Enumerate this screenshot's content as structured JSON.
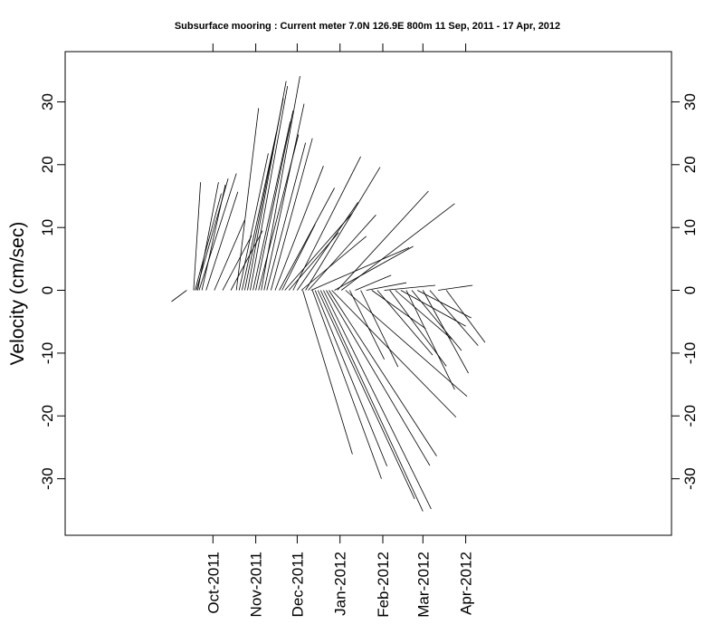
{
  "chart_data": {
    "type": "stick-plot",
    "title": "Subsurface mooring : Current meter  7.0N 126.9E   800m  11 Sep, 2011 - 17 Apr, 2012",
    "xlabel": "",
    "ylabel": "Velocity (cm/sec)",
    "ylim": [
      -39,
      38
    ],
    "yticks": [
      -30,
      -20,
      -10,
      0,
      10,
      20,
      30
    ],
    "ytick_labels": [
      "-30",
      "-20",
      "-10",
      "0",
      "10",
      "20",
      "30"
    ],
    "xlim": [
      "2011-06-16",
      "2012-08-28"
    ],
    "xticks": [
      "2011-10-01",
      "2011-11-01",
      "2011-12-01",
      "2012-01-01",
      "2012-02-01",
      "2012-03-01",
      "2012-04-01"
    ],
    "xtick_labels": [
      "Oct-2011",
      "Nov-2011",
      "Dec-2011",
      "Jan-2012",
      "Feb-2012",
      "Mar-2012",
      "Apr-2012"
    ],
    "grid": false,
    "sticks": [
      {
        "date": "2011-09-12",
        "tip": [
          "2011-09-01",
          -1.8
        ]
      },
      {
        "date": "2011-09-17",
        "tip": [
          "2011-09-22",
          17.2
        ]
      },
      {
        "date": "2011-09-18",
        "tip": [
          "2011-10-07",
          15.4
        ]
      },
      {
        "date": "2011-09-19",
        "tip": [
          "2011-10-12",
          17.8
        ]
      },
      {
        "date": "2011-09-20",
        "tip": [
          "2011-10-05",
          17.2
        ]
      },
      {
        "date": "2011-09-21",
        "tip": [
          "2011-10-18",
          18.6
        ]
      },
      {
        "date": "2011-09-23",
        "tip": [
          "2011-10-10",
          16.8
        ]
      },
      {
        "date": "2011-09-26",
        "tip": [
          "2011-10-19",
          15.7
        ]
      },
      {
        "date": "2011-10-02",
        "tip": [
          "2011-10-24",
          11.2
        ]
      },
      {
        "date": "2011-10-08",
        "tip": [
          "2011-10-29",
          8.7
        ]
      },
      {
        "date": "2011-10-14",
        "tip": [
          "2011-11-06",
          9.5
        ]
      },
      {
        "date": "2011-10-18",
        "tip": [
          "2011-11-03",
          29.0
        ]
      },
      {
        "date": "2011-10-20",
        "tip": [
          "2011-11-10",
          21.8
        ]
      },
      {
        "date": "2011-10-22",
        "tip": [
          "2011-11-16",
          25.2
        ]
      },
      {
        "date": "2011-10-24",
        "tip": [
          "2011-11-21",
          30.6
        ]
      },
      {
        "date": "2011-10-26",
        "tip": [
          "2011-11-23",
          33.3
        ]
      },
      {
        "date": "2011-10-28",
        "tip": [
          "2011-11-24",
          32.5
        ]
      },
      {
        "date": "2011-10-30",
        "tip": [
          "2011-11-26",
          26.9
        ]
      },
      {
        "date": "2011-11-01",
        "tip": [
          "2011-11-28",
          28.6
        ]
      },
      {
        "date": "2011-11-03",
        "tip": [
          "2011-12-02",
          24.8
        ]
      },
      {
        "date": "2011-11-05",
        "tip": [
          "2011-12-03",
          34.1
        ]
      },
      {
        "date": "2011-11-07",
        "tip": [
          "2011-12-06",
          29.7
        ]
      },
      {
        "date": "2011-11-09",
        "tip": [
          "2011-12-07",
          23.5
        ]
      },
      {
        "date": "2011-11-12",
        "tip": [
          "2011-12-12",
          24.2
        ]
      },
      {
        "date": "2011-11-15",
        "tip": [
          "2011-12-20",
          19.8
        ]
      },
      {
        "date": "2011-11-18",
        "tip": [
          "2011-12-28",
          16.3
        ]
      },
      {
        "date": "2011-11-20",
        "tip": [
          "2011-12-14",
          10.5
        ]
      },
      {
        "date": "2011-11-22",
        "tip": [
          "2012-01-10",
          12.3
        ]
      },
      {
        "date": "2011-11-25",
        "tip": [
          "2011-12-31",
          9.2
        ]
      },
      {
        "date": "2011-11-28",
        "tip": [
          "2012-01-16",
          21.3
        ]
      },
      {
        "date": "2011-12-01",
        "tip": [
          "2012-01-14",
          14.0
        ]
      },
      {
        "date": "2011-12-04",
        "tip": [
          "2012-01-20",
          8.6
        ]
      },
      {
        "date": "2011-12-05",
        "tip": [
          "2012-01-10",
          -26.1
        ]
      },
      {
        "date": "2011-12-07",
        "tip": [
          "2012-01-30",
          19.6
        ]
      },
      {
        "date": "2011-12-09",
        "tip": [
          "2012-01-27",
          12.0
        ]
      },
      {
        "date": "2011-12-11",
        "tip": [
          "2012-02-20",
          6.8
        ]
      },
      {
        "date": "2011-12-12",
        "tip": [
          "2012-01-31",
          -30.0
        ]
      },
      {
        "date": "2011-12-14",
        "tip": [
          "2012-02-04",
          -28.0
        ]
      },
      {
        "date": "2011-12-16",
        "tip": [
          "2012-02-24",
          -33.2
        ]
      },
      {
        "date": "2011-12-18",
        "tip": [
          "2012-03-01",
          -35.2
        ]
      },
      {
        "date": "2011-12-20",
        "tip": [
          "2012-03-07",
          -34.8
        ]
      },
      {
        "date": "2011-12-22",
        "tip": [
          "2012-03-06",
          -27.9
        ]
      },
      {
        "date": "2011-12-24",
        "tip": [
          "2012-03-11",
          -26.4
        ]
      },
      {
        "date": "2011-12-26",
        "tip": [
          "2012-03-25",
          -20.2
        ]
      },
      {
        "date": "2011-12-28",
        "tip": [
          "2012-02-23",
          7.0
        ]
      },
      {
        "date": "2011-12-30",
        "tip": [
          "2012-03-05",
          15.8
        ]
      },
      {
        "date": "2012-01-02",
        "tip": [
          "2012-03-24",
          13.8
        ]
      },
      {
        "date": "2012-01-05",
        "tip": [
          "2012-04-02",
          -16.9
        ]
      },
      {
        "date": "2012-01-08",
        "tip": [
          "2012-02-02",
          -11.0
        ]
      },
      {
        "date": "2012-01-12",
        "tip": [
          "2012-02-07",
          2.4
        ]
      },
      {
        "date": "2012-01-16",
        "tip": [
          "2012-02-12",
          -12.2
        ]
      },
      {
        "date": "2012-01-20",
        "tip": [
          "2012-02-18",
          1.2
        ]
      },
      {
        "date": "2012-01-24",
        "tip": [
          "2012-03-03",
          -6.1
        ]
      },
      {
        "date": "2012-01-28",
        "tip": [
          "2012-03-08",
          -10.3
        ]
      },
      {
        "date": "2012-02-02",
        "tip": [
          "2012-03-10",
          0.8
        ]
      },
      {
        "date": "2012-02-06",
        "tip": [
          "2012-03-18",
          -12.1
        ]
      },
      {
        "date": "2012-02-10",
        "tip": [
          "2012-03-22",
          -7.8
        ]
      },
      {
        "date": "2012-02-14",
        "tip": [
          "2012-04-01",
          -5.7
        ]
      },
      {
        "date": "2012-02-18",
        "tip": [
          "2012-03-24",
          -15.8
        ]
      },
      {
        "date": "2012-02-22",
        "tip": [
          "2012-03-29",
          -9.6
        ]
      },
      {
        "date": "2012-02-26",
        "tip": [
          "2012-04-05",
          -4.4
        ]
      },
      {
        "date": "2012-03-01",
        "tip": [
          "2012-04-03",
          -13.2
        ]
      },
      {
        "date": "2012-03-06",
        "tip": [
          "2012-04-10",
          -8.8
        ]
      },
      {
        "date": "2012-03-12",
        "tip": [
          "2012-04-06",
          0.8
        ]
      },
      {
        "date": "2012-03-18",
        "tip": [
          "2012-04-15",
          -8.3
        ]
      }
    ]
  }
}
